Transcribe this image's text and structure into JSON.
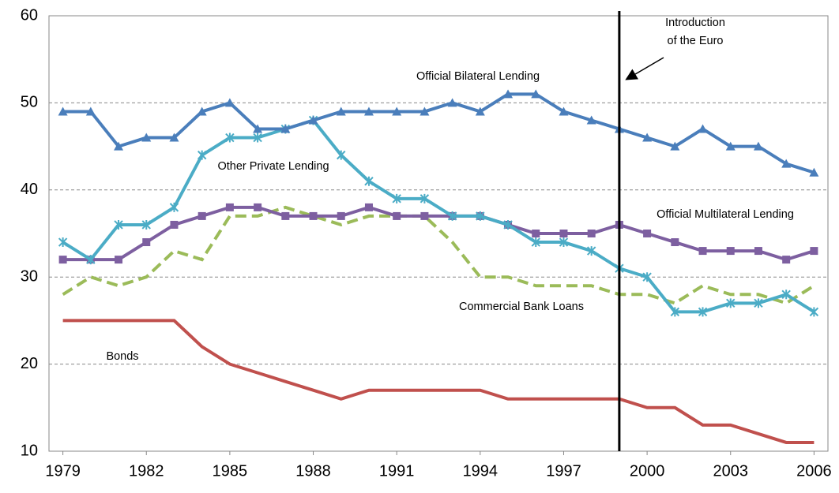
{
  "chart_data": {
    "type": "line",
    "x": [
      1979,
      1980,
      1981,
      1982,
      1983,
      1984,
      1985,
      1986,
      1987,
      1988,
      1989,
      1990,
      1991,
      1992,
      1993,
      1994,
      1995,
      1996,
      1997,
      1998,
      1999,
      2000,
      2001,
      2002,
      2003,
      2004,
      2005,
      2006
    ],
    "series": [
      {
        "name": "Official Bilateral Lending",
        "color": "#4a7ebb",
        "marker": "triangle",
        "dash": false,
        "values": [
          49,
          49,
          45,
          46,
          46,
          49,
          50,
          47,
          47,
          48,
          49,
          49,
          49,
          49,
          50,
          49,
          51,
          51,
          49,
          48,
          47,
          46,
          45,
          47,
          45,
          45,
          43,
          42
        ]
      },
      {
        "name": "Other Private Lending",
        "color": "#4bacc6",
        "marker": "star",
        "dash": false,
        "values": [
          34,
          32,
          36,
          36,
          38,
          44,
          46,
          46,
          47,
          48,
          44,
          41,
          39,
          39,
          37,
          37,
          36,
          34,
          34,
          33,
          31,
          30,
          26,
          26,
          27,
          27,
          28,
          26
        ]
      },
      {
        "name": "Official Multilateral Lending",
        "color": "#7d5fa0",
        "marker": "square",
        "dash": false,
        "values": [
          32,
          32,
          32,
          34,
          36,
          37,
          38,
          38,
          37,
          37,
          37,
          38,
          37,
          37,
          37,
          37,
          36,
          35,
          35,
          35,
          36,
          35,
          34,
          33,
          33,
          33,
          32,
          33
        ]
      },
      {
        "name": "Commercial Bank Loans",
        "color": "#9bbb59",
        "marker": "none",
        "dash": true,
        "values": [
          28,
          30,
          29,
          30,
          33,
          32,
          37,
          37,
          38,
          37,
          36,
          37,
          37,
          37,
          34,
          30,
          30,
          29,
          29,
          29,
          28,
          28,
          27,
          29,
          28,
          28,
          27,
          29
        ]
      },
      {
        "name": "Bonds",
        "color": "#c0504d",
        "marker": "none",
        "dash": false,
        "values": [
          25,
          25,
          25,
          25,
          25,
          22,
          20,
          19,
          18,
          17,
          16,
          17,
          17,
          17,
          17,
          17,
          16,
          16,
          16,
          16,
          16,
          15,
          15,
          13,
          13,
          12,
          11,
          11
        ]
      }
    ],
    "xlim": [
      1978.5,
      2006.5
    ],
    "xticks": [
      1979,
      1982,
      1985,
      1988,
      1991,
      1994,
      1997,
      2000,
      2003,
      2006
    ],
    "ylim": [
      10,
      60
    ],
    "yticks": [
      10,
      20,
      30,
      40,
      50,
      60
    ],
    "grid": true,
    "vline": 1999,
    "annotation": [
      "Introduction",
      "of the Euro"
    ]
  }
}
